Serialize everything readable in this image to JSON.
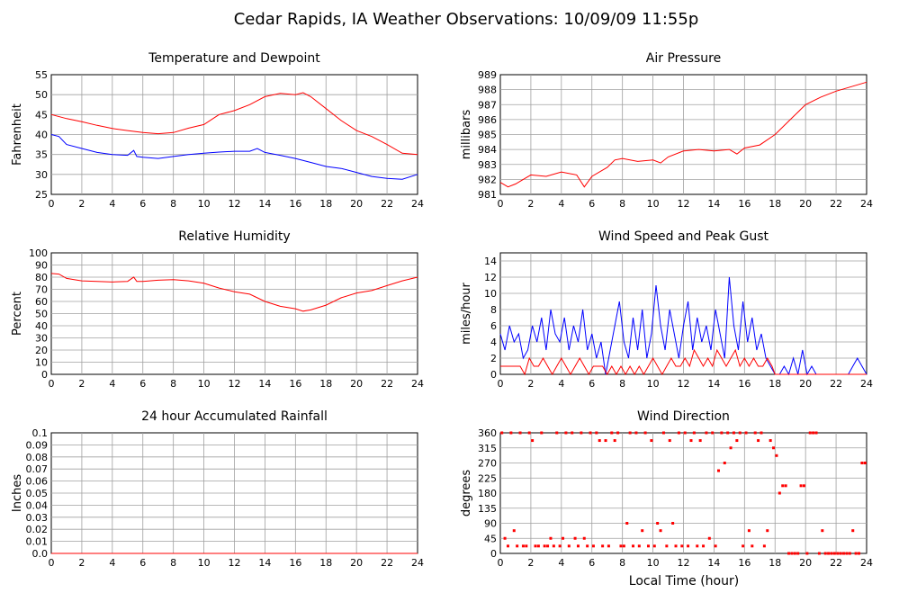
{
  "page": {
    "title": "Cedar Rapids, IA Weather Observations: 10/09/09 11:55p",
    "xlabel": "Local Time (hour)"
  },
  "colors": {
    "red": "#ff0000",
    "blue": "#0000ff",
    "grid": "#a0a0a0"
  },
  "chart_data": [
    {
      "id": "temp",
      "type": "line",
      "title": "Temperature and Dewpoint",
      "ylabel": "Fahrenheit",
      "xlim": [
        0,
        24
      ],
      "ylim": [
        25,
        55
      ],
      "xticks": [
        "0",
        "2",
        "4",
        "6",
        "8",
        "10",
        "12",
        "14",
        "16",
        "18",
        "20",
        "22",
        "24"
      ],
      "yticks": [
        "25",
        "30",
        "35",
        "40",
        "45",
        "50",
        "55"
      ],
      "series": [
        {
          "color": "#ff0000",
          "x": [
            0,
            1,
            2,
            3,
            4,
            5,
            6,
            7,
            8,
            9,
            10,
            11,
            12,
            13,
            14,
            15,
            16,
            16.5,
            17,
            18,
            19,
            20,
            21,
            22,
            23,
            24
          ],
          "values": [
            45,
            44,
            43.2,
            42.3,
            41.5,
            41,
            40.5,
            40.2,
            40.5,
            41.6,
            42.5,
            45,
            46,
            47.5,
            49.5,
            50.3,
            50,
            50.5,
            49.5,
            46.5,
            43.5,
            41,
            39.5,
            37.5,
            35.3,
            35
          ]
        },
        {
          "color": "#0000ff",
          "x": [
            0,
            0.5,
            1,
            2,
            3,
            4,
            5,
            5.4,
            5.6,
            6,
            7,
            8,
            9,
            10,
            11,
            12,
            13,
            13.5,
            14,
            15,
            16,
            17,
            18,
            19,
            20,
            21,
            22,
            23,
            24
          ],
          "values": [
            40,
            39.5,
            37.5,
            36.5,
            35.5,
            35,
            34.8,
            36,
            34.5,
            34.3,
            34,
            34.5,
            35,
            35.3,
            35.6,
            35.8,
            35.8,
            36.5,
            35.5,
            34.8,
            34,
            33,
            32,
            31.5,
            30.5,
            29.5,
            29,
            28.8,
            30
          ]
        }
      ]
    },
    {
      "id": "pres",
      "type": "line",
      "title": "Air Pressure",
      "ylabel": "millibars",
      "xlim": [
        0,
        24
      ],
      "ylim": [
        981,
        989
      ],
      "xticks": [
        "0",
        "2",
        "4",
        "6",
        "8",
        "10",
        "12",
        "14",
        "16",
        "18",
        "20",
        "22",
        "24"
      ],
      "yticks": [
        "981",
        "982",
        "983",
        "984",
        "985",
        "986",
        "987",
        "988",
        "989"
      ],
      "series": [
        {
          "color": "#ff0000",
          "x": [
            0,
            0.5,
            1,
            1.5,
            2,
            3,
            4,
            5,
            5.5,
            6,
            7,
            7.5,
            8,
            9,
            10,
            10.5,
            11,
            12,
            13,
            14,
            15,
            15.5,
            16,
            17,
            18,
            19,
            20,
            21,
            22,
            23,
            24
          ],
          "values": [
            981.8,
            981.5,
            981.7,
            982,
            982.3,
            982.2,
            982.5,
            982.3,
            981.5,
            982.2,
            982.8,
            983.3,
            983.4,
            983.2,
            983.3,
            983.1,
            983.5,
            983.9,
            984,
            983.9,
            984,
            983.7,
            984.1,
            984.3,
            985,
            986,
            987,
            987.5,
            987.9,
            988.2,
            988.5
          ]
        }
      ]
    },
    {
      "id": "rh",
      "type": "line",
      "title": "Relative Humidity",
      "ylabel": "Percent",
      "xlim": [
        0,
        24
      ],
      "ylim": [
        0,
        100
      ],
      "xticks": [
        "0",
        "2",
        "4",
        "6",
        "8",
        "10",
        "12",
        "14",
        "16",
        "18",
        "20",
        "22",
        "24"
      ],
      "yticks": [
        "0",
        "10",
        "20",
        "30",
        "40",
        "50",
        "60",
        "70",
        "80",
        "90",
        "100"
      ],
      "series": [
        {
          "color": "#ff0000",
          "x": [
            0,
            0.5,
            1,
            2,
            3,
            4,
            5,
            5.4,
            5.6,
            6,
            7,
            8,
            9,
            10,
            11,
            12,
            13,
            14,
            15,
            16,
            16.5,
            17,
            18,
            19,
            20,
            21,
            22,
            23,
            24
          ],
          "values": [
            83,
            82.5,
            79,
            77,
            76.5,
            76,
            76.5,
            80,
            76.5,
            76.5,
            77.5,
            78,
            77,
            75,
            71,
            68,
            66,
            60,
            56,
            54,
            52,
            53,
            57,
            63,
            67,
            69,
            73,
            77,
            80
          ]
        }
      ]
    },
    {
      "id": "wind",
      "type": "line",
      "title": "Wind Speed and Peak Gust",
      "ylabel": "miles/hour",
      "xlim": [
        0,
        24
      ],
      "ylim": [
        0,
        15
      ],
      "xticks": [
        "0",
        "2",
        "4",
        "6",
        "8",
        "10",
        "12",
        "14",
        "16",
        "18",
        "20",
        "22",
        "24"
      ],
      "yticks": [
        "0",
        "2",
        "4",
        "6",
        "8",
        "10",
        "12",
        "14"
      ],
      "series": [
        {
          "color": "#0000ff",
          "x": [
            0,
            0.3,
            0.6,
            0.9,
            1.2,
            1.5,
            1.8,
            2.1,
            2.4,
            2.7,
            3,
            3.3,
            3.6,
            3.9,
            4.2,
            4.5,
            4.8,
            5.1,
            5.4,
            5.7,
            6,
            6.3,
            6.6,
            6.9,
            7.2,
            7.5,
            7.8,
            8.1,
            8.4,
            8.7,
            9,
            9.3,
            9.6,
            9.9,
            10.2,
            10.5,
            10.8,
            11.1,
            11.4,
            11.7,
            12,
            12.3,
            12.6,
            12.9,
            13.2,
            13.5,
            13.8,
            14.1,
            14.4,
            14.7,
            15,
            15.3,
            15.6,
            15.9,
            16.2,
            16.5,
            16.8,
            17.1,
            17.4,
            17.7,
            18,
            18.3,
            18.6,
            18.9,
            19.2,
            19.5,
            19.8,
            20.1,
            20.4,
            20.7,
            21,
            21.3,
            21.6,
            21.9,
            22.2,
            22.5,
            22.8,
            23.1,
            23.4,
            23.7,
            24
          ],
          "values": [
            5,
            3,
            6,
            4,
            5,
            2,
            3,
            6,
            4,
            7,
            3,
            8,
            5,
            4,
            7,
            3,
            6,
            4,
            8,
            3,
            5,
            2,
            4,
            0,
            3,
            6,
            9,
            4,
            2,
            7,
            3,
            8,
            2,
            5,
            11,
            6,
            3,
            8,
            5,
            2,
            6,
            9,
            3,
            7,
            4,
            6,
            3,
            8,
            5,
            2,
            12,
            6,
            3,
            9,
            4,
            7,
            3,
            5,
            2,
            1,
            0,
            0,
            1,
            0,
            2,
            0,
            3,
            0,
            1,
            0,
            0,
            0,
            0,
            0,
            0,
            0,
            0,
            1,
            2,
            1,
            0
          ]
        },
        {
          "color": "#ff0000",
          "x": [
            0,
            1,
            1.3,
            1.6,
            1.9,
            2.2,
            2.5,
            2.8,
            3.1,
            3.4,
            3.7,
            4,
            4.3,
            4.6,
            4.9,
            5.2,
            5.5,
            5.8,
            6.1,
            6.4,
            6.7,
            7,
            7.3,
            7.6,
            7.9,
            8.2,
            8.5,
            8.8,
            9.1,
            9.4,
            9.7,
            10,
            10.3,
            10.6,
            10.9,
            11.2,
            11.5,
            11.8,
            12.1,
            12.4,
            12.7,
            13,
            13.3,
            13.6,
            13.9,
            14.2,
            14.5,
            14.8,
            15.1,
            15.4,
            15.7,
            16,
            16.3,
            16.6,
            16.9,
            17.2,
            17.5,
            17.8,
            18,
            24
          ],
          "values": [
            1,
            1,
            1,
            0,
            2,
            1,
            1,
            2,
            1,
            0,
            1,
            2,
            1,
            0,
            1,
            2,
            1,
            0,
            1,
            1,
            1,
            0,
            1,
            0,
            1,
            0,
            1,
            0,
            1,
            0,
            1,
            2,
            1,
            0,
            1,
            2,
            1,
            1,
            2,
            1,
            3,
            2,
            1,
            2,
            1,
            3,
            2,
            1,
            2,
            3,
            1,
            2,
            1,
            2,
            1,
            1,
            2,
            1,
            0,
            0
          ]
        }
      ]
    },
    {
      "id": "rain",
      "type": "line",
      "title": "24 hour Accumulated Rainfall",
      "ylabel": "Inches",
      "xlim": [
        0,
        24
      ],
      "ylim": [
        0,
        0.1
      ],
      "xticks": [
        "0",
        "2",
        "4",
        "6",
        "8",
        "10",
        "12",
        "14",
        "16",
        "18",
        "20",
        "22",
        "24"
      ],
      "yticks": [
        "0.0",
        "0.01",
        "0.02",
        "0.03",
        "0.04",
        "0.05",
        "0.06",
        "0.07",
        "0.08",
        "0.09",
        "0.1"
      ],
      "series": [
        {
          "color": "#ff0000",
          "x": [
            0,
            24
          ],
          "values": [
            0,
            0
          ]
        }
      ]
    },
    {
      "id": "dir",
      "type": "scatter",
      "title": "Wind Direction",
      "ylabel": "degrees",
      "xlim": [
        0,
        24
      ],
      "ylim": [
        0,
        360
      ],
      "xticks": [
        "0",
        "2",
        "4",
        "6",
        "8",
        "10",
        "12",
        "14",
        "16",
        "18",
        "20",
        "22",
        "24"
      ],
      "yticks": [
        "0",
        "45",
        "90",
        "135",
        "180",
        "225",
        "270",
        "315",
        "360"
      ],
      "series": [
        {
          "color": "#ff0000",
          "x": [
            0.1,
            0.3,
            0.5,
            0.7,
            0.9,
            1.1,
            1.3,
            1.5,
            1.7,
            1.9,
            2.1,
            2.3,
            2.5,
            2.7,
            2.9,
            3.1,
            3.3,
            3.5,
            3.7,
            3.9,
            4.1,
            4.3,
            4.5,
            4.7,
            4.9,
            5.1,
            5.3,
            5.5,
            5.7,
            5.9,
            6.1,
            6.3,
            6.5,
            6.7,
            6.9,
            7.1,
            7.3,
            7.5,
            7.7,
            7.9,
            8.1,
            8.3,
            8.5,
            8.7,
            8.9,
            9.1,
            9.3,
            9.5,
            9.7,
            9.9,
            10.1,
            10.3,
            10.5,
            10.7,
            10.9,
            11.1,
            11.3,
            11.5,
            11.7,
            11.9,
            12.1,
            12.3,
            12.5,
            12.7,
            12.9,
            13.1,
            13.3,
            13.5,
            13.7,
            13.9,
            14.1,
            14.3,
            14.5,
            14.7,
            14.9,
            15.1,
            15.3,
            15.5,
            15.7,
            15.9,
            16.1,
            16.3,
            16.5,
            16.7,
            16.9,
            17.1,
            17.3,
            17.5,
            17.7,
            17.9,
            18.1,
            18.3,
            18.5,
            18.7,
            18.9,
            19.1,
            19.3,
            19.5,
            19.7,
            19.9,
            20.1,
            20.3,
            20.5,
            20.7,
            20.9,
            21.1,
            21.3,
            21.5,
            21.7,
            21.9,
            22.1,
            22.3,
            22.5,
            22.7,
            22.9,
            23.1,
            23.3,
            23.5,
            23.7,
            23.9
          ],
          "values": [
            360,
            45,
            22,
            360,
            68,
            22,
            360,
            22,
            22,
            360,
            337,
            22,
            22,
            360,
            22,
            22,
            45,
            22,
            360,
            22,
            45,
            360,
            22,
            360,
            45,
            22,
            360,
            45,
            22,
            360,
            22,
            360,
            337,
            22,
            337,
            22,
            360,
            337,
            360,
            22,
            22,
            90,
            360,
            22,
            360,
            22,
            68,
            360,
            22,
            337,
            22,
            90,
            68,
            360,
            22,
            337,
            90,
            22,
            360,
            22,
            360,
            22,
            337,
            360,
            22,
            337,
            22,
            360,
            45,
            360,
            22,
            247,
            360,
            270,
            360,
            315,
            360,
            337,
            360,
            22,
            360,
            68,
            22,
            360,
            337,
            360,
            22,
            68,
            337,
            315,
            292,
            180,
            202,
            202,
            0,
            0,
            0,
            0,
            202,
            202,
            0,
            360,
            360,
            360,
            0,
            68,
            0,
            0,
            0,
            0,
            0,
            0,
            0,
            0,
            0,
            68,
            0,
            0,
            270,
            270
          ]
        }
      ]
    }
  ]
}
